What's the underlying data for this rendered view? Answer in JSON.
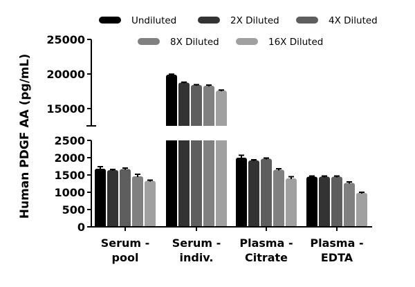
{
  "chart_data": {
    "type": "bar",
    "title": "",
    "xlabel": "",
    "ylabel": "Human PDGF AA (pg/mL)",
    "categories": [
      "Serum - pool",
      "Serum - indiv.",
      "Plasma - Citrate",
      "Plasma - EDTA"
    ],
    "category_lines": [
      [
        "Serum -",
        "pool"
      ],
      [
        "Serum -",
        "indiv."
      ],
      [
        "Plasma -",
        "Citrate"
      ],
      [
        "Plasma -",
        "EDTA"
      ]
    ],
    "series": [
      {
        "name": "Undiluted",
        "color": "#000000",
        "values": [
          1680,
          19900,
          2000,
          1450
        ],
        "errors": [
          60,
          80,
          70,
          20
        ]
      },
      {
        "name": "2X Diluted",
        "color": "#333333",
        "values": [
          1640,
          18750,
          1920,
          1450
        ],
        "errors": [
          20,
          70,
          20,
          20
        ]
      },
      {
        "name": "4X Diluted",
        "color": "#5e5e5e",
        "values": [
          1670,
          18400,
          1970,
          1450
        ],
        "errors": [
          30,
          60,
          20,
          20
        ]
      },
      {
        "name": "8X Diluted",
        "color": "#808080",
        "values": [
          1460,
          18300,
          1650,
          1270
        ],
        "errors": [
          60,
          100,
          30,
          30
        ]
      },
      {
        "name": "16X Diluted",
        "color": "#a0a0a0",
        "values": [
          1330,
          17600,
          1400,
          980
        ],
        "errors": [
          20,
          80,
          50,
          20
        ]
      }
    ],
    "y_axis_broken": true,
    "y_lower_segment": {
      "range": [
        0,
        2500
      ],
      "ticks": [
        0,
        500,
        1000,
        1500,
        2000,
        2500
      ]
    },
    "y_upper_segment": {
      "range": [
        12500,
        25000
      ],
      "ticks": [
        15000,
        20000,
        25000
      ]
    },
    "legend_position": "top",
    "grid": false
  }
}
